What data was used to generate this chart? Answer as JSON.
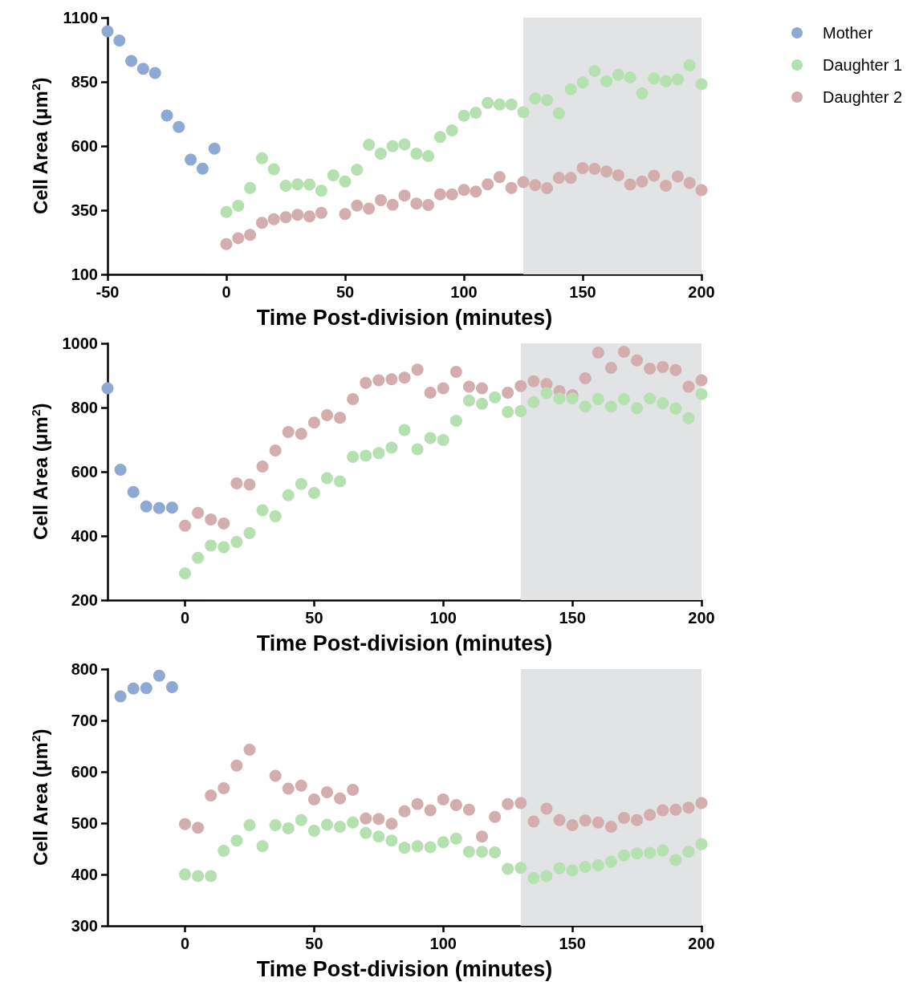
{
  "chart_data": [
    {
      "type": "scatter",
      "xlabel": "Time Post-division (minutes)",
      "ylabel": "Cell Area (μm$^{2}$)",
      "xlim": [
        -50,
        200
      ],
      "xticks": [
        -50,
        0,
        50,
        100,
        150,
        200
      ],
      "ylim": [
        100,
        1100
      ],
      "yticks": [
        100,
        350,
        600,
        850,
        1100
      ],
      "grid": false,
      "marker": "circle",
      "legend": "top right",
      "bands": [
        {
          "axis": "x",
          "from": 125,
          "to": 200,
          "color": "#e2e3e5"
        }
      ],
      "series": [
        {
          "name": "Mother",
          "color": "#8ea9d4",
          "x": [
            -50,
            -45,
            -40,
            -35,
            -30,
            -25,
            -20,
            -15,
            -10,
            -5
          ],
          "values": [
            1047,
            1011,
            931,
            901,
            884,
            719,
            674,
            547,
            512,
            590
          ]
        },
        {
          "name": "Daughter 1",
          "color": "#b5e0b0",
          "x": [
            0,
            5,
            10,
            15,
            20,
            25,
            30,
            35,
            40,
            45,
            50,
            55,
            60,
            65,
            70,
            75,
            80,
            85,
            90,
            95,
            100,
            105,
            110,
            115,
            120,
            125,
            130,
            135,
            140,
            145,
            150,
            155,
            160,
            165,
            170,
            175,
            180,
            185,
            190,
            195,
            200
          ],
          "values": [
            343,
            367,
            437,
            552,
            509,
            445,
            451,
            450,
            426,
            486,
            462,
            508,
            605,
            570,
            599,
            606,
            570,
            561,
            635,
            661,
            718,
            730,
            768,
            762,
            762,
            732,
            785,
            779,
            727,
            821,
            848,
            892,
            852,
            877,
            867,
            805,
            863,
            852,
            859,
            915,
            841
          ]
        },
        {
          "name": "Daughter 2",
          "color": "#d4aeae",
          "x": [
            0,
            5,
            10,
            15,
            20,
            25,
            30,
            35,
            40,
            45,
            50,
            55,
            60,
            65,
            70,
            75,
            80,
            85,
            90,
            95,
            100,
            105,
            110,
            115,
            120,
            125,
            130,
            135,
            140,
            145,
            150,
            155,
            160,
            165,
            170,
            175,
            180,
            185,
            190,
            195,
            200
          ],
          "values": [
            218,
            241,
            254,
            301,
            315,
            323,
            332,
            326,
            340,
            null,
            335,
            368,
            356,
            389,
            371,
            407,
            376,
            370,
            412,
            412,
            429,
            423,
            451,
            479,
            437,
            459,
            448,
            436,
            476,
            476,
            514,
            511,
            501,
            486,
            450,
            462,
            484,
            445,
            481,
            456,
            428
          ]
        }
      ]
    },
    {
      "type": "scatter",
      "xlabel": "Time Post-division (minutes)",
      "ylabel": "Cell Area (μm$^{2}$)",
      "xlim": [
        -30,
        200
      ],
      "xticks": [
        0,
        50,
        100,
        150,
        200
      ],
      "ylim": [
        200,
        1000
      ],
      "yticks": [
        200,
        400,
        600,
        800,
        1000
      ],
      "grid": false,
      "marker": "circle",
      "bands": [
        {
          "axis": "x",
          "from": 130,
          "to": 200,
          "color": "#e2e3e5"
        }
      ],
      "series": [
        {
          "color": "#8ea9d4",
          "x": [
            -30,
            -25,
            -20,
            -15,
            -10,
            -5
          ],
          "values": [
            860,
            606,
            537,
            492,
            487,
            488
          ]
        },
        {
          "color": "#b5e0b0",
          "x": [
            0,
            5,
            10,
            15,
            20,
            25,
            30,
            35,
            40,
            45,
            50,
            55,
            60,
            65,
            70,
            75,
            80,
            85,
            90,
            95,
            100,
            105,
            110,
            115,
            120,
            125,
            130,
            135,
            140,
            145,
            150,
            155,
            160,
            165,
            170,
            175,
            180,
            185,
            190,
            195,
            200
          ],
          "values": [
            283,
            332,
            370,
            365,
            381,
            409,
            480,
            461,
            527,
            562,
            534,
            580,
            570,
            646,
            650,
            658,
            675,
            730,
            670,
            705,
            699,
            759,
            822,
            812,
            832,
            786,
            789,
            817,
            845,
            828,
            828,
            803,
            826,
            803,
            826,
            798,
            828,
            813,
            797,
            767,
            842
          ]
        },
        {
          "color": "#d4aeae",
          "x": [
            0,
            5,
            10,
            15,
            20,
            25,
            30,
            35,
            40,
            45,
            50,
            55,
            60,
            65,
            70,
            75,
            80,
            85,
            90,
            95,
            100,
            105,
            110,
            115,
            120,
            125,
            130,
            135,
            140,
            145,
            150,
            155,
            160,
            165,
            170,
            175,
            180,
            185,
            190,
            195,
            200
          ],
          "values": [
            432,
            472,
            451,
            439,
            564,
            560,
            616,
            666,
            724,
            718,
            753,
            776,
            768,
            826,
            877,
            885,
            888,
            893,
            918,
            846,
            860,
            911,
            865,
            860,
            null,
            846,
            867,
            882,
            873,
            851,
            839,
            891,
            971,
            924,
            974,
            947,
            921,
            926,
            917,
            865,
            885
          ]
        }
      ]
    },
    {
      "type": "scatter",
      "xlabel": "Time Post-division (minutes)",
      "ylabel": "Cell Area (μm$^{2}$)",
      "xlim": [
        -30,
        200
      ],
      "xticks": [
        0,
        50,
        100,
        150,
        200
      ],
      "ylim": [
        300,
        800
      ],
      "yticks": [
        300,
        400,
        500,
        600,
        700,
        800
      ],
      "grid": false,
      "marker": "circle",
      "bands": [
        {
          "axis": "x",
          "from": 130,
          "to": 200,
          "color": "#e2e3e5"
        }
      ],
      "series": [
        {
          "color": "#8ea9d4",
          "x": [
            -25,
            -20,
            -15,
            -10,
            -5
          ],
          "values": [
            747,
            762,
            763,
            787,
            765
          ]
        },
        {
          "color": "#b5e0b0",
          "x": [
            0,
            5,
            10,
            15,
            20,
            25,
            30,
            35,
            40,
            45,
            50,
            55,
            60,
            65,
            70,
            75,
            80,
            85,
            90,
            95,
            100,
            105,
            110,
            115,
            120,
            125,
            130,
            135,
            140,
            145,
            150,
            155,
            160,
            165,
            170,
            175,
            180,
            185,
            190,
            195,
            200
          ],
          "values": [
            400,
            397,
            397,
            446,
            466,
            496,
            455,
            496,
            490,
            506,
            485,
            497,
            493,
            501,
            481,
            474,
            466,
            452,
            455,
            453,
            463,
            470,
            444,
            444,
            443,
            411,
            413,
            393,
            397,
            412,
            408,
            415,
            418,
            425,
            437,
            441,
            442,
            447,
            428,
            444,
            459
          ]
        },
        {
          "color": "#d4aeae",
          "x": [
            0,
            5,
            10,
            15,
            20,
            25,
            30,
            35,
            40,
            45,
            50,
            55,
            60,
            65,
            70,
            75,
            80,
            85,
            90,
            95,
            100,
            105,
            110,
            115,
            120,
            125,
            130,
            135,
            140,
            145,
            150,
            155,
            160,
            165,
            170,
            175,
            180,
            185,
            190,
            195,
            200
          ],
          "values": [
            498,
            491,
            554,
            568,
            612,
            643,
            null,
            592,
            567,
            573,
            546,
            560,
            548,
            565,
            509,
            508,
            499,
            523,
            537,
            525,
            546,
            535,
            526,
            474,
            512,
            537,
            539,
            503,
            528,
            506,
            496,
            505,
            501,
            493,
            510,
            506,
            516,
            525,
            526,
            530,
            539
          ]
        }
      ]
    }
  ]
}
